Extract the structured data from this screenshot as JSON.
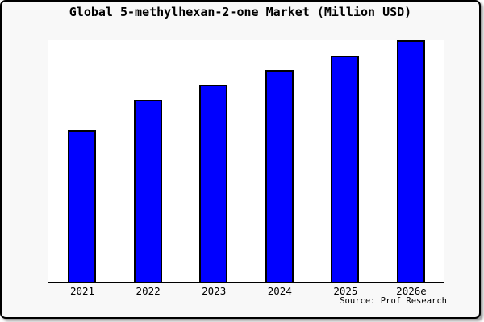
{
  "title": "Global 5-methylhexan-2-one Market (Million USD)",
  "source": "Source: Prof Research",
  "colors": {
    "bar_fill": "#0000ff",
    "bar_outline": "#000000",
    "canvas_background": "#f8f8f8",
    "plot_background": "#ffffff",
    "frame_border": "#000000",
    "text": "#000000"
  },
  "chart_data": {
    "type": "bar",
    "title": "Global 5-methylhexan-2-one Market (Million USD)",
    "categories": [
      "2021",
      "2022",
      "2023",
      "2024",
      "2025",
      "2026e"
    ],
    "values": [
      62.5,
      75.3,
      81.7,
      87.7,
      93.8,
      100
    ],
    "values_note": "y-axis is unlabeled; values are relative bar heights as percent of the tallest (2026e) bar",
    "xlabel": "",
    "ylabel": "",
    "ylim": [
      0,
      100
    ],
    "grid": false,
    "legend": false,
    "caption": "Source: Prof Research"
  }
}
